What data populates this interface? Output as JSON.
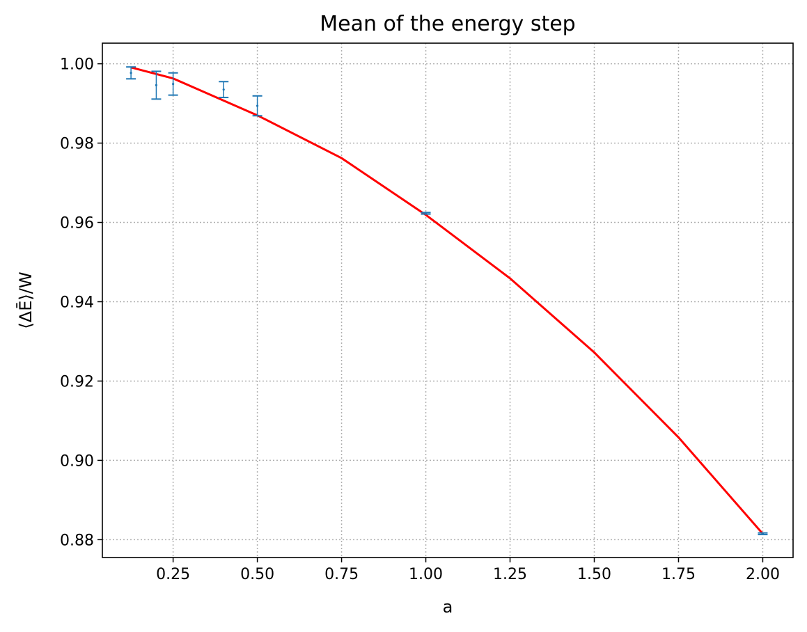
{
  "chart_data": {
    "type": "scatter",
    "title": "Mean of the energy step",
    "xlabel": "a",
    "ylabel": "⟨ΔĒ⟩/W",
    "xlim": [
      0.04,
      2.09
    ],
    "ylim": [
      0.8755,
      1.0052
    ],
    "xticks": [
      0.25,
      0.5,
      0.75,
      1.0,
      1.25,
      1.5,
      1.75,
      2.0
    ],
    "xtick_labels": [
      "0.25",
      "0.50",
      "0.75",
      "1.00",
      "1.25",
      "1.50",
      "1.75",
      "2.00"
    ],
    "yticks": [
      0.88,
      0.9,
      0.92,
      0.94,
      0.96,
      0.98,
      1.0
    ],
    "ytick_labels": [
      "0.88",
      "0.90",
      "0.92",
      "0.94",
      "0.96",
      "0.98",
      "1.00"
    ],
    "grid": true,
    "series": [
      {
        "kind": "errorbar",
        "color": "#1f77b4",
        "points": [
          {
            "x": 0.125,
            "y": 0.9977,
            "err": 0.0015
          },
          {
            "x": 0.2,
            "y": 0.9946,
            "err": 0.0035
          },
          {
            "x": 0.25,
            "y": 0.9949,
            "err": 0.0028
          },
          {
            "x": 0.4,
            "y": 0.9935,
            "err": 0.002
          },
          {
            "x": 0.5,
            "y": 0.9894,
            "err": 0.0025
          },
          {
            "x": 1.0,
            "y": 0.9623,
            "err": 0.0002
          },
          {
            "x": 2.0,
            "y": 0.8815,
            "err": 0.0002
          }
        ]
      },
      {
        "kind": "line",
        "color": "#ff0000",
        "x": [
          0.125,
          0.25,
          0.5,
          0.75,
          1.0,
          1.25,
          1.5,
          1.75,
          2.0
        ],
        "y": [
          0.9991,
          0.9963,
          0.987,
          0.9762,
          0.9619,
          0.9459,
          0.9272,
          0.9058,
          0.8815
        ]
      }
    ]
  }
}
